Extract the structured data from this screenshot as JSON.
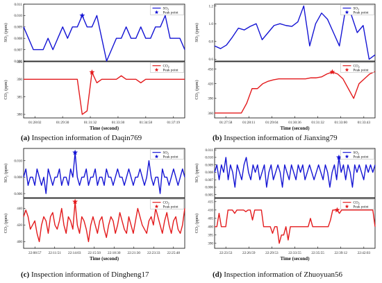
{
  "chart_data": [
    {
      "type": "line",
      "caption_letter": "(a)",
      "caption_text": " Inspection information of Daqin769",
      "xlabel": "Time (second)",
      "x_ticks": [
        "01:28:02",
        "01:29:30",
        "01:31:32",
        "01:33:30",
        "01:34:58",
        "01:37:19"
      ],
      "legend_peak": "Peak point",
      "top": {
        "ylabel_main": "SO",
        "ylabel_sub": "2",
        "ylabel_unit": " (ppm)",
        "legend_main": "SO",
        "legend_sub": "2",
        "ylim": [
          0.006,
          0.011
        ],
        "yticks": [
          "0.006",
          "0.007",
          "0.008",
          "0.009",
          "0.010",
          "0.011"
        ],
        "yvals": [
          0.006,
          0.007,
          0.008,
          0.009,
          0.01,
          0.011
        ],
        "values": [
          0.009,
          0.008,
          0.007,
          0.007,
          0.007,
          0.008,
          0.007,
          0.008,
          0.009,
          0.008,
          0.009,
          0.009,
          0.01,
          0.009,
          0.009,
          0.01,
          0.008,
          0.006,
          0.007,
          0.008,
          0.008,
          0.009,
          0.008,
          0.008,
          0.009,
          0.008,
          0.008,
          0.009,
          0.009,
          0.01,
          0.008,
          0.008,
          0.008,
          0.007
        ],
        "peak_index": 12
      },
      "bottom": {
        "ylabel_main": "CO",
        "ylabel_sub": "2",
        "ylabel_unit": " (ppm)",
        "legend_main": "CO",
        "legend_sub": "2",
        "ylim": [
          379,
          395
        ],
        "yticks": [
          "380",
          "385",
          "390",
          "395"
        ],
        "yvals": [
          380,
          385,
          390,
          395
        ],
        "values": [
          390,
          390,
          390,
          390,
          390,
          390,
          390,
          390,
          390,
          390,
          390,
          390,
          380,
          381,
          392,
          389,
          390,
          390,
          390,
          390,
          391,
          390,
          390,
          390,
          389,
          390,
          390,
          390,
          390,
          390,
          390,
          390,
          390,
          390
        ],
        "peak_index": 14
      }
    },
    {
      "type": "line",
      "caption_letter": "(b)",
      "caption_text": " Inspection information of Jianxing79",
      "xlabel": "Time (second)",
      "x_ticks": [
        "01:27:58",
        "01:28:11",
        "01:29:04",
        "01:30:36",
        "01:31:32",
        "01:33:00",
        "01:33:43"
      ],
      "legend_peak": "Peak point",
      "top": {
        "ylabel_main": "SO",
        "ylabel_sub": "2",
        "ylabel_unit": " (ppm)",
        "legend_main": "SO",
        "legend_sub": "2",
        "ylim": [
          0.58,
          1.22
        ],
        "yticks": [
          "0.6",
          "0.8",
          "1.0",
          "1.2"
        ],
        "yvals": [
          0.6,
          0.8,
          1.0,
          1.2
        ],
        "values": [
          0.75,
          0.72,
          0.76,
          0.85,
          0.95,
          0.93,
          0.97,
          1.0,
          0.82,
          0.9,
          0.98,
          1.0,
          0.98,
          0.97,
          1.02,
          1.2,
          0.75,
          1.0,
          1.12,
          1.05,
          0.9,
          0.75,
          1.15,
          1.1,
          0.9,
          0.98,
          0.6,
          0.65
        ],
        "peak_index": 22
      },
      "bottom": {
        "ylabel_main": "CO",
        "ylabel_sub": "2",
        "ylabel_unit": " (ppm)",
        "legend_main": "CO",
        "legend_sub": "2",
        "ylim": [
          350,
          465
        ],
        "yticks": [
          "360",
          "390",
          "420",
          "450"
        ],
        "yvals": [
          360,
          390,
          420,
          450
        ],
        "values": [
          360,
          360,
          360,
          360,
          360,
          360,
          380,
          410,
          410,
          420,
          425,
          428,
          430,
          430,
          430,
          430,
          430,
          430,
          432,
          432,
          434,
          440,
          444,
          440,
          430,
          410,
          390,
          420,
          430,
          440,
          445
        ],
        "peak_index": 22
      }
    },
    {
      "type": "line",
      "caption_letter": "(c)",
      "caption_text": " Inspection information of Dingheng17",
      "xlabel": "Time (second)",
      "x_ticks": [
        "22:08:57",
        "22:11:51",
        "22:14:03",
        "22:15:50",
        "22:18:30",
        "22:21:30",
        "22:23:33",
        "22:25:48"
      ],
      "legend_peak": "Peak point",
      "top": {
        "ylabel_main": "SO",
        "ylabel_sub": "2",
        "ylabel_unit": " (ppm)",
        "legend_main": "SO",
        "legend_sub": "2",
        "ylim": [
          0.0055,
          0.0115
        ],
        "yticks": [
          "0.006",
          "0.008",
          "0.010"
        ],
        "yvals": [
          0.006,
          0.008,
          0.01
        ],
        "values": [
          0.008,
          0.009,
          0.007,
          0.008,
          0.008,
          0.007,
          0.009,
          0.008,
          0.007,
          0.008,
          0.006,
          0.009,
          0.008,
          0.007,
          0.008,
          0.008,
          0.009,
          0.007,
          0.008,
          0.008,
          0.007,
          0.009,
          0.008,
          0.011,
          0.008,
          0.007,
          0.008,
          0.008,
          0.009,
          0.007,
          0.008,
          0.008,
          0.009,
          0.007,
          0.008,
          0.008,
          0.007,
          0.009,
          0.008,
          0.008,
          0.007,
          0.008,
          0.009,
          0.008,
          0.008,
          0.007,
          0.008,
          0.009,
          0.008,
          0.007,
          0.008,
          0.008,
          0.009,
          0.008,
          0.007,
          0.008,
          0.01,
          0.008,
          0.007,
          0.008,
          0.008,
          0.006,
          0.009,
          0.008,
          0.008,
          0.007,
          0.008,
          0.009,
          0.008,
          0.007,
          0.008,
          0.009,
          0.008
        ],
        "peak_index": 23
      },
      "bottom": {
        "ylabel_main": "CO",
        "ylabel_sub": "2",
        "ylabel_unit": " (ppm)",
        "legend_main": "CO",
        "legend_sub": "2",
        "ylim": [
          392,
          452
        ],
        "yticks": [
          "400",
          "420",
          "440"
        ],
        "yvals": [
          400,
          420,
          440
        ],
        "values": [
          430,
          438,
          430,
          415,
          420,
          425,
          410,
          400,
          420,
          430,
          425,
          410,
          430,
          435,
          420,
          415,
          425,
          440,
          420,
          410,
          430,
          425,
          415,
          448,
          420,
          410,
          430,
          425,
          415,
          400,
          420,
          430,
          420,
          410,
          425,
          430,
          415,
          405,
          420,
          430,
          425,
          410,
          420,
          435,
          425,
          415,
          410,
          430,
          420,
          410,
          425,
          440,
          430,
          420,
          415,
          410,
          425,
          430,
          420,
          440,
          430,
          420,
          410,
          425,
          435,
          420,
          410,
          425,
          430,
          415,
          410,
          420,
          440
        ],
        "peak_index": 23
      }
    },
    {
      "type": "line",
      "caption_letter": "(d)",
      "caption_text": " Inspection information of Zhuoyuan56",
      "xlabel": "Time (second)",
      "x_ticks": [
        "22:23:53",
        "22:26:59",
        "22:29:53",
        "22:33:55",
        "22:35:55",
        "22:39:12",
        "22:42:03"
      ],
      "legend_peak": "Peak point",
      "top": {
        "ylabel_main": "SO",
        "ylabel_sub": "2",
        "ylabel_unit": " (ppm)",
        "legend_main": "SO",
        "legend_sub": "2",
        "ylim": [
          0.0046,
          0.0112
        ],
        "yticks": [
          "0.005",
          "0.006",
          "0.007",
          "0.008",
          "0.009",
          "0.010",
          "0.011"
        ],
        "yvals": [
          0.005,
          0.006,
          0.007,
          0.008,
          0.009,
          0.01,
          0.011
        ],
        "values": [
          0.008,
          0.009,
          0.007,
          0.009,
          0.008,
          0.01,
          0.007,
          0.009,
          0.008,
          0.006,
          0.009,
          0.008,
          0.007,
          0.009,
          0.01,
          0.008,
          0.007,
          0.009,
          0.008,
          0.009,
          0.007,
          0.008,
          0.009,
          0.006,
          0.008,
          0.009,
          0.007,
          0.008,
          0.009,
          0.008,
          0.006,
          0.009,
          0.008,
          0.007,
          0.009,
          0.008,
          0.007,
          0.009,
          0.008,
          0.009,
          0.007,
          0.008,
          0.009,
          0.008,
          0.007,
          0.008,
          0.009,
          0.008,
          0.007,
          0.009,
          0.008,
          0.006,
          0.008,
          0.009,
          0.007,
          0.01,
          0.008,
          0.009,
          0.007,
          0.009,
          0.008,
          0.006,
          0.009,
          0.008,
          0.009,
          0.008,
          0.007,
          0.009,
          0.008,
          0.009,
          0.008,
          0.009
        ],
        "peak_index": 55
      },
      "bottom": {
        "ylabel_main": "CO",
        "ylabel_sub": "2",
        "ylabel_unit": " (ppm)",
        "legend_main": "CO",
        "legend_sub": "2",
        "ylim": [
          387,
          417
        ],
        "yticks": [
          "390",
          "395",
          "400",
          "405",
          "410",
          "415"
        ],
        "yvals": [
          390,
          395,
          400,
          405,
          410,
          415
        ],
        "values": [
          400,
          400,
          408,
          400,
          400,
          400,
          410,
          410,
          410,
          408,
          410,
          410,
          410,
          410,
          409,
          410,
          410,
          404,
          410,
          410,
          410,
          410,
          400,
          400,
          400,
          400,
          396,
          400,
          400,
          390,
          395,
          395,
          400,
          392,
          400,
          400,
          400,
          400,
          400,
          400,
          400,
          400,
          400,
          405,
          400,
          400,
          400,
          400,
          400,
          400,
          400,
          400,
          404,
          410,
          410,
          410,
          408,
          410,
          410,
          410,
          410,
          410,
          410,
          410,
          410,
          410,
          410,
          410,
          410,
          410,
          410,
          410,
          400
        ],
        "peak_index": 55
      }
    }
  ]
}
